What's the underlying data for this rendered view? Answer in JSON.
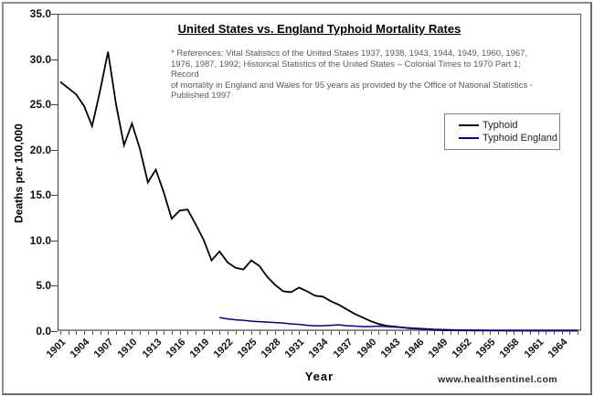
{
  "title": "United States vs. England Typhoid Mortality Rates",
  "references_lines": [
    "* References: Vital Statistics of the United States 1937, 1938, 1943, 1944, 1949, 1960, 1967,",
    "1976, 1987, 1992; Historical Statistics of the United States – Colonial Times to 1970 Part 1; Record",
    "of mortality in England and Wales for 95 years as provided by the Office of National Statistics -",
    "Published 1997"
  ],
  "watermark": "www.healthsentinel.com",
  "chart_data": {
    "type": "line",
    "title": "United States vs. England Typhoid Mortality Rates",
    "xlabel": "Year",
    "ylabel": "Deaths per 100,000",
    "xlim": [
      1901,
      1966
    ],
    "ylim": [
      0,
      35
    ],
    "grid": false,
    "legend_position": "upper right",
    "y_ticks": [
      0,
      5,
      10,
      15,
      20,
      25,
      30,
      35
    ],
    "x_tick_labels": [
      "1901",
      "1904",
      "1907",
      "1910",
      "1913",
      "1916",
      "1919",
      "1922",
      "1925",
      "1928",
      "1931",
      "1934",
      "1937",
      "1940",
      "1943",
      "1946",
      "1949",
      "1952",
      "1955",
      "1958",
      "1961",
      "1964"
    ],
    "series": [
      {
        "name": "Typhoid",
        "color": "#000000",
        "x_start": 1901,
        "x_step": 1,
        "values": [
          27.5,
          26.8,
          26.1,
          24.8,
          22.6,
          26.5,
          30.8,
          25.0,
          20.5,
          22.9,
          20.1,
          16.4,
          17.8,
          15.3,
          12.4,
          13.3,
          13.4,
          11.8,
          10.1,
          7.8,
          8.8,
          7.6,
          7.0,
          6.8,
          7.8,
          7.2,
          6.0,
          5.1,
          4.4,
          4.3,
          4.8,
          4.4,
          3.9,
          3.8,
          3.3,
          2.9,
          2.4,
          1.9,
          1.5,
          1.1,
          0.8,
          0.6,
          0.5,
          0.4,
          0.3,
          0.25,
          0.2,
          0.15,
          0.1,
          0.1,
          0.08,
          0.08,
          0.07,
          0.07,
          0.06,
          0.06,
          0.05,
          0.05,
          0.05,
          0.05,
          0.05,
          0.05,
          0.05,
          0.05,
          0.05,
          0.05
        ]
      },
      {
        "name": "Typhoid England",
        "color": "#000099",
        "x_start": 1921,
        "x_step": 1,
        "values": [
          1.5,
          1.35,
          1.25,
          1.2,
          1.1,
          1.05,
          1.0,
          0.95,
          0.9,
          0.8,
          0.75,
          0.65,
          0.6,
          0.6,
          0.65,
          0.7,
          0.6,
          0.55,
          0.5,
          0.5,
          0.55,
          0.5,
          0.45,
          0.4,
          0.35,
          0.3,
          0.25,
          0.2,
          0.18,
          0.15,
          0.12,
          0.1,
          0.1,
          0.08,
          0.08,
          0.07,
          0.07,
          0.06,
          0.06,
          0.05,
          0.05,
          0.05,
          0.05,
          0.05,
          0.05,
          0.05
        ]
      }
    ]
  }
}
